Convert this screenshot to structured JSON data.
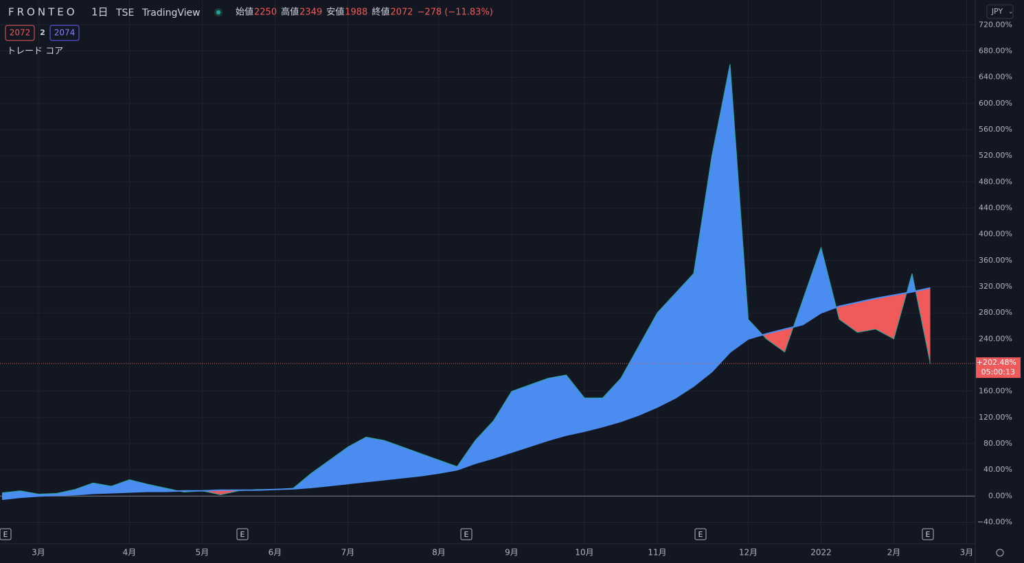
{
  "header": {
    "symbol": "FRONTEO",
    "interval": "1日",
    "exchange": "TSE",
    "source": "TradingView",
    "ohlc": [
      {
        "label": "始値",
        "value": 2250
      },
      {
        "label": "高値",
        "value": 2349
      },
      {
        "label": "安値",
        "value": 1988
      },
      {
        "label": "終値",
        "value": 2072
      }
    ],
    "change": "−278 (−11.83%)",
    "tags": [
      "2072",
      "2",
      "2074"
    ],
    "indicator": "トレード コア",
    "currency": "JPY"
  },
  "chart_data": {
    "type": "area-band",
    "categories": [
      null,
      null,
      "3月",
      null,
      null,
      null,
      null,
      "4月",
      null,
      null,
      null,
      "5月",
      null,
      null,
      null,
      "6月",
      null,
      null,
      null,
      "7月",
      null,
      null,
      null,
      null,
      "8月",
      null,
      null,
      null,
      "9月",
      null,
      null,
      null,
      "10月",
      null,
      null,
      null,
      "11月",
      null,
      null,
      null,
      null,
      "12月",
      null,
      null,
      null,
      "2022",
      null,
      null,
      null,
      "2月",
      null,
      null,
      null,
      "3月"
    ],
    "series": [
      {
        "name": "price",
        "color": "#2aa59a",
        "values": [
          5,
          8,
          3,
          4,
          10,
          20,
          15,
          25,
          18,
          12,
          6,
          8,
          2,
          8,
          10,
          10,
          12,
          35,
          55,
          75,
          90,
          85,
          75,
          65,
          55,
          45,
          85,
          115,
          160,
          170,
          180,
          185,
          150,
          150,
          180,
          230,
          280,
          310,
          340,
          520,
          660,
          270,
          240,
          220,
          300,
          380,
          270,
          250,
          255,
          240,
          340,
          202.48,
          null,
          null
        ]
      },
      {
        "name": "ma",
        "color": "#4a8cf0",
        "values": [
          -5,
          -2,
          0,
          1,
          2,
          4,
          5,
          6,
          7,
          7,
          8,
          8,
          9,
          9,
          9,
          10,
          11,
          13,
          16,
          19,
          22,
          25,
          28,
          31,
          35,
          40,
          50,
          58,
          67,
          76,
          85,
          93,
          99,
          106,
          114,
          124,
          136,
          150,
          168,
          190,
          220,
          240,
          248,
          255,
          262,
          280,
          290,
          296,
          302,
          307,
          312,
          318,
          null,
          null
        ]
      }
    ],
    "up_color": "#4b8cf0",
    "down_color": "#f05a5a",
    "ylim": [
      -73,
      758
    ],
    "yticks": [
      {
        "value": -40,
        "label": "−40.00%"
      },
      {
        "value": 0,
        "label": "0.00%"
      },
      {
        "value": 40,
        "label": "40.00%"
      },
      {
        "value": 80,
        "label": "80.00%"
      },
      {
        "value": 120,
        "label": "120.00%"
      },
      {
        "value": 160,
        "label": "160.00%"
      },
      {
        "value": 240,
        "label": "240.00%"
      },
      {
        "value": 280,
        "label": "280.00%"
      },
      {
        "value": 320,
        "label": "320.00%"
      },
      {
        "value": 360,
        "label": "360.00%"
      },
      {
        "value": 400,
        "label": "400.00%"
      },
      {
        "value": 440,
        "label": "440.00%"
      },
      {
        "value": 480,
        "label": "480.00%"
      },
      {
        "value": 520,
        "label": "520.00%"
      },
      {
        "value": 560,
        "label": "560.00%"
      },
      {
        "value": 600,
        "label": "600.00%"
      },
      {
        "value": 640,
        "label": "640.00%"
      },
      {
        "value": 680,
        "label": "680.00%"
      },
      {
        "value": 720,
        "label": "720.00%"
      }
    ],
    "last_price": {
      "value": 202.48,
      "label": "+202.48%"
    },
    "countdown": "05:00:13",
    "events": [
      "E",
      "E",
      "E",
      "E",
      "E"
    ],
    "grid": true
  }
}
